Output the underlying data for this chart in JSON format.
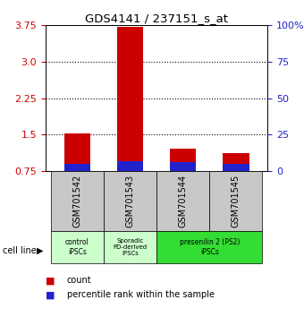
{
  "title": "GDS4141 / 237151_s_at",
  "samples": [
    "GSM701542",
    "GSM701543",
    "GSM701544",
    "GSM701545"
  ],
  "count_values": [
    1.52,
    3.72,
    1.22,
    1.12
  ],
  "percentile_values": [
    5.0,
    7.0,
    6.0,
    5.0
  ],
  "ylim_left": [
    0.75,
    3.75
  ],
  "yticks_left": [
    0.75,
    1.5,
    2.25,
    3.0,
    3.75
  ],
  "ylim_right": [
    0,
    100
  ],
  "yticks_right": [
    0,
    25,
    50,
    75,
    100
  ],
  "ytick_labels_right": [
    "0",
    "25",
    "50",
    "75",
    "100%"
  ],
  "bar_bottom": 0.75,
  "bar_width": 0.5,
  "red_color": "#cc0000",
  "blue_color": "#2222cc",
  "grid_style": "dotted",
  "grid_color": "black",
  "left_axis_color": "#cc0000",
  "right_axis_color": "#2222cc",
  "sample_box_color": "#c8c8c8",
  "group0_color": "#ccffcc",
  "group1_color": "#ccffcc",
  "group2_color": "#33dd33",
  "cell_line_label": "cell line",
  "legend_count_label": "count",
  "legend_pct_label": "percentile rank within the sample",
  "group0_label": "control\niPSCs",
  "group1_label": "Sporadic\nPD-derived\niPSCs",
  "group2_label": "presenilin 2 (PS2)\niPSCs"
}
